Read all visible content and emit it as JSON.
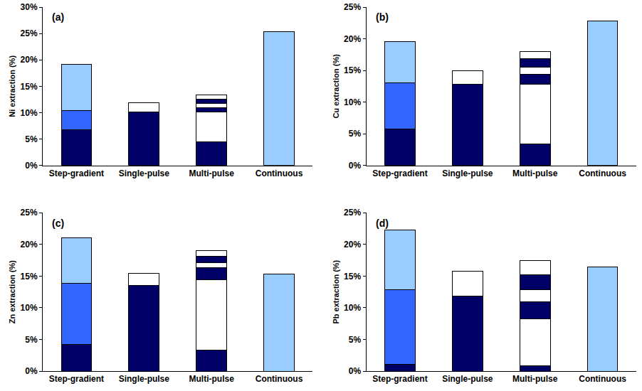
{
  "chart_data": [
    {
      "type": "bar",
      "stacked": true,
      "grid": false,
      "title": "(a)",
      "ylabel": "Ni extraction (%)",
      "categories": [
        "Step-gradient",
        "Single-pulse",
        "Multi-pulse",
        "Continuous"
      ],
      "series": [
        {
          "values": [
            6.7,
            10.1,
            4.5,
            25.4
          ],
          "colors": [
            "#000066",
            "#000066",
            "#000066",
            "#99ccff"
          ]
        },
        {
          "values": [
            3.7,
            1.8,
            5.7,
            null
          ],
          "colors": [
            "#3366ff",
            "#ffffff",
            "#ffffff",
            "#ffffff"
          ]
        },
        {
          "values": [
            8.7,
            null,
            0.8,
            null
          ],
          "colors": [
            "#99ccff",
            "#ffffff",
            "#000066",
            "#ffffff"
          ]
        },
        {
          "values": [
            null,
            null,
            0.7,
            null
          ],
          "colors": [
            "#ffffff",
            "#ffffff",
            "#ffffff",
            "#ffffff"
          ]
        },
        {
          "values": [
            null,
            null,
            0.8,
            null
          ],
          "colors": [
            "#000066",
            "#000066",
            "#000066",
            "#000066"
          ]
        },
        {
          "values": [
            null,
            null,
            0.8,
            null
          ],
          "colors": [
            "#ffffff",
            "#ffffff",
            "#ffffff",
            "#ffffff"
          ]
        }
      ],
      "ylim": [
        0,
        30
      ],
      "yticks": [
        {
          "value": 0,
          "label": "0%"
        },
        {
          "value": 5,
          "label": "5%"
        },
        {
          "value": 10,
          "label": "10%"
        },
        {
          "value": 15,
          "label": "15%"
        },
        {
          "value": 20,
          "label": "20%"
        },
        {
          "value": 25,
          "label": "25%"
        },
        {
          "value": 30,
          "label": "30%"
        }
      ]
    },
    {
      "type": "bar",
      "stacked": true,
      "grid": false,
      "title": "(b)",
      "ylabel": "Cu extraction (%)",
      "categories": [
        "Step-gradient",
        "Single-pulse",
        "Multi-pulse",
        "Continuous"
      ],
      "series": [
        {
          "values": [
            5.7,
            12.8,
            3.4,
            22.8
          ],
          "colors": [
            "#000066",
            "#000066",
            "#000066",
            "#99ccff"
          ]
        },
        {
          "values": [
            7.4,
            2.2,
            9.4,
            null
          ],
          "colors": [
            "#3366ff",
            "#ffffff",
            "#ffffff",
            "#ffffff"
          ]
        },
        {
          "values": [
            6.5,
            null,
            1.6,
            null
          ],
          "colors": [
            "#99ccff",
            "#ffffff",
            "#000066",
            "#ffffff"
          ]
        },
        {
          "values": [
            null,
            null,
            1.1,
            null
          ],
          "colors": [
            "#ffffff",
            "#ffffff",
            "#ffffff",
            "#ffffff"
          ]
        },
        {
          "values": [
            null,
            null,
            1.4,
            null
          ],
          "colors": [
            "#000066",
            "#000066",
            "#000066",
            "#000066"
          ]
        },
        {
          "values": [
            null,
            null,
            1.1,
            null
          ],
          "colors": [
            "#ffffff",
            "#ffffff",
            "#ffffff",
            "#ffffff"
          ]
        }
      ],
      "ylim": [
        0,
        25
      ],
      "yticks": [
        {
          "value": 0,
          "label": "0%"
        },
        {
          "value": 5,
          "label": "5%"
        },
        {
          "value": 10,
          "label": "10%"
        },
        {
          "value": 15,
          "label": "15%"
        },
        {
          "value": 20,
          "label": "20%"
        },
        {
          "value": 25,
          "label": "25%"
        }
      ]
    },
    {
      "type": "bar",
      "stacked": true,
      "grid": false,
      "title": "(c)",
      "ylabel": "Zn extraction (%)",
      "categories": [
        "Step-gradient",
        "Single-pulse",
        "Multi-pulse",
        "Continuous"
      ],
      "series": [
        {
          "values": [
            4.2,
            13.5,
            3.3,
            15.3
          ],
          "colors": [
            "#000066",
            "#000066",
            "#000066",
            "#99ccff"
          ]
        },
        {
          "values": [
            9.7,
            1.9,
            11.1,
            null
          ],
          "colors": [
            "#3366ff",
            "#ffffff",
            "#ffffff",
            "#ffffff"
          ]
        },
        {
          "values": [
            7.2,
            null,
            1.9,
            null
          ],
          "colors": [
            "#99ccff",
            "#ffffff",
            "#000066",
            "#ffffff"
          ]
        },
        {
          "values": [
            null,
            null,
            0.8,
            null
          ],
          "colors": [
            "#ffffff",
            "#ffffff",
            "#ffffff",
            "#ffffff"
          ]
        },
        {
          "values": [
            null,
            null,
            1.0,
            null
          ],
          "colors": [
            "#000066",
            "#000066",
            "#000066",
            "#000066"
          ]
        },
        {
          "values": [
            null,
            null,
            0.9,
            null
          ],
          "colors": [
            "#ffffff",
            "#ffffff",
            "#ffffff",
            "#ffffff"
          ]
        }
      ],
      "ylim": [
        0,
        25
      ],
      "yticks": [
        {
          "value": 0,
          "label": "0%"
        },
        {
          "value": 5,
          "label": "5%"
        },
        {
          "value": 10,
          "label": "10%"
        },
        {
          "value": 15,
          "label": "15%"
        },
        {
          "value": 20,
          "label": "20%"
        },
        {
          "value": 25,
          "label": "25%"
        }
      ]
    },
    {
      "type": "bar",
      "stacked": true,
      "grid": false,
      "title": "(d)",
      "ylabel": "Pb extraction (%)",
      "categories": [
        "Step-gradient",
        "Single-pulse",
        "Multi-pulse",
        "Continuous"
      ],
      "series": [
        {
          "values": [
            1.1,
            11.8,
            0.8,
            16.5
          ],
          "colors": [
            "#000066",
            "#000066",
            "#000066",
            "#99ccff"
          ]
        },
        {
          "values": [
            11.8,
            4.0,
            7.5,
            null
          ],
          "colors": [
            "#3366ff",
            "#ffffff",
            "#ffffff",
            "#ffffff"
          ]
        },
        {
          "values": [
            9.4,
            null,
            2.6,
            null
          ],
          "colors": [
            "#99ccff",
            "#ffffff",
            "#000066",
            "#ffffff"
          ]
        },
        {
          "values": [
            null,
            null,
            2.0,
            null
          ],
          "colors": [
            "#ffffff",
            "#ffffff",
            "#ffffff",
            "#ffffff"
          ]
        },
        {
          "values": [
            null,
            null,
            2.3,
            null
          ],
          "colors": [
            "#000066",
            "#000066",
            "#000066",
            "#000066"
          ]
        },
        {
          "values": [
            null,
            null,
            2.3,
            null
          ],
          "colors": [
            "#ffffff",
            "#ffffff",
            "#ffffff",
            "#ffffff"
          ]
        }
      ],
      "ylim": [
        0,
        25
      ],
      "yticks": [
        {
          "value": 0,
          "label": "0%"
        },
        {
          "value": 5,
          "label": "5%"
        },
        {
          "value": 10,
          "label": "10%"
        },
        {
          "value": 15,
          "label": "15%"
        },
        {
          "value": 20,
          "label": "20%"
        },
        {
          "value": 25,
          "label": "25%"
        }
      ]
    }
  ]
}
